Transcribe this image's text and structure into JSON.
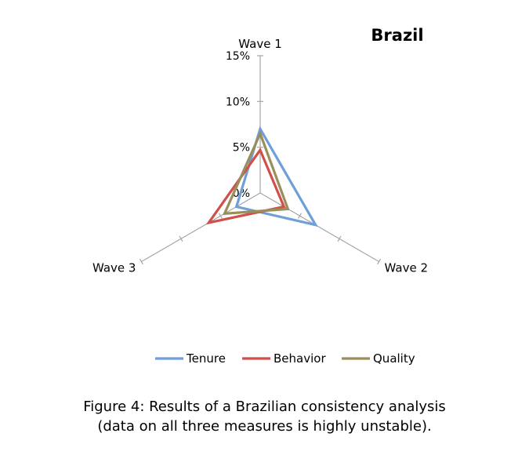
{
  "chart_data": {
    "type": "radar",
    "title": "Brazil",
    "axes": [
      "Wave 1",
      "Wave 2",
      "Wave 3"
    ],
    "ticks": [
      "0%",
      "5%",
      "10%",
      "15%"
    ],
    "rlim": [
      0,
      15
    ],
    "grid": false,
    "legend_position": "bottom",
    "series": [
      {
        "name": "Tenure",
        "color": "#6f9fd8",
        "values": [
          7.0,
          7.0,
          3.0
        ]
      },
      {
        "name": "Behavior",
        "color": "#d0504c",
        "values": [
          4.7,
          3.0,
          6.5
        ]
      },
      {
        "name": "Quality",
        "color": "#9a8f5a",
        "values": [
          6.5,
          3.5,
          4.5
        ]
      }
    ]
  },
  "caption": {
    "line1": "Figure 4: Results of a Brazilian consistency analysis",
    "line2": "(data on all three measures is highly unstable)."
  }
}
